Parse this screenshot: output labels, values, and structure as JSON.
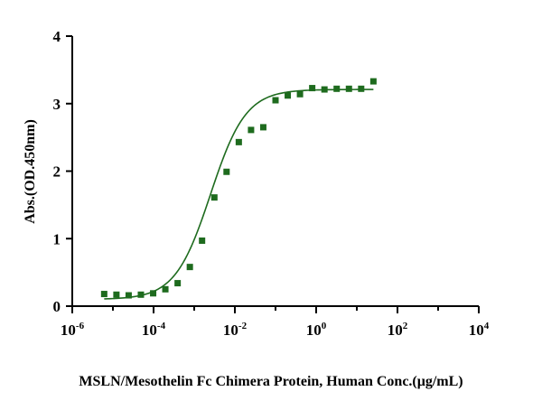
{
  "chart_data": {
    "type": "scatter",
    "xlabel": "MSLN/Mesothelin Fc Chimera Protein, Human Conc.(μg/mL)",
    "ylabel": "Abs.(OD.450nm)",
    "x_scale": "log",
    "xlim": [
      1e-06,
      10000
    ],
    "ylim": [
      0,
      4
    ],
    "grid": false,
    "x_ticks": [
      {
        "base": "10",
        "exp": "-6"
      },
      {
        "base": "10",
        "exp": "-4"
      },
      {
        "base": "10",
        "exp": "-2"
      },
      {
        "base": "10",
        "exp": "0"
      },
      {
        "base": "10",
        "exp": "2"
      },
      {
        "base": "10",
        "exp": "4"
      }
    ],
    "y_ticks": [
      "0",
      "1",
      "2",
      "3",
      "4"
    ],
    "y_tick_values": [
      0,
      1,
      2,
      3,
      4
    ],
    "series": [
      {
        "color": "#1e6b1e",
        "marker": "square",
        "x": [
          6.1e-06,
          1.22e-05,
          2.44e-05,
          4.88e-05,
          9.77e-05,
          0.000195,
          0.000391,
          0.000781,
          0.00156,
          0.00313,
          0.00625,
          0.0125,
          0.025,
          0.05,
          0.1,
          0.2,
          0.4,
          0.8,
          1.6,
          3.2,
          6.4,
          12.8,
          25.6
        ],
        "y": [
          0.18,
          0.17,
          0.16,
          0.17,
          0.19,
          0.25,
          0.34,
          0.58,
          0.97,
          1.61,
          1.99,
          2.43,
          2.61,
          2.65,
          3.05,
          3.12,
          3.14,
          3.23,
          3.21,
          3.22,
          3.22,
          3.22,
          3.33
        ]
      }
    ],
    "fit_curve": {
      "bottom": 0.1,
      "top": 3.21,
      "logEC50": -2.6,
      "hill": 1.0
    }
  }
}
